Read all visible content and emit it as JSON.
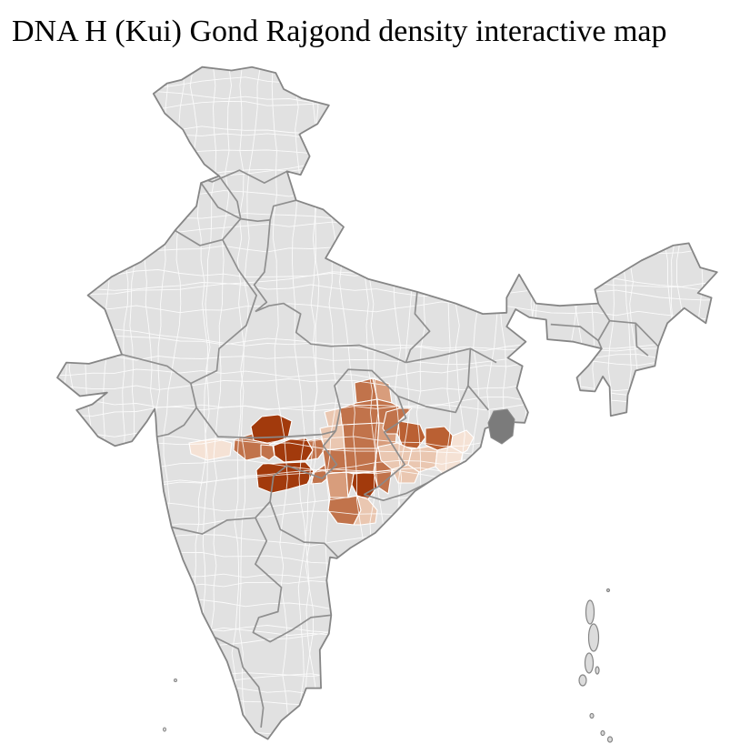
{
  "title": "DNA H (Kui) Gond Rajgond density interactive map",
  "map": {
    "country": "India",
    "kind": "district-level density choropleth",
    "background": "#ffffff",
    "land_fill": "#e1e1e1",
    "district_border": "#ffffff",
    "state_border": "#8b8b8b",
    "coast_border": "#868686",
    "island_fill": "#dcdcdc",
    "delta_district_fill": "#7b7b7b",
    "palette": {
      "p1": "#a23a0c",
      "p2": "#ba6033",
      "p3": "#c1734b",
      "p4": "#d89d7c",
      "p5": "#eac7b1",
      "p6": "#f5e2d5"
    }
  }
}
